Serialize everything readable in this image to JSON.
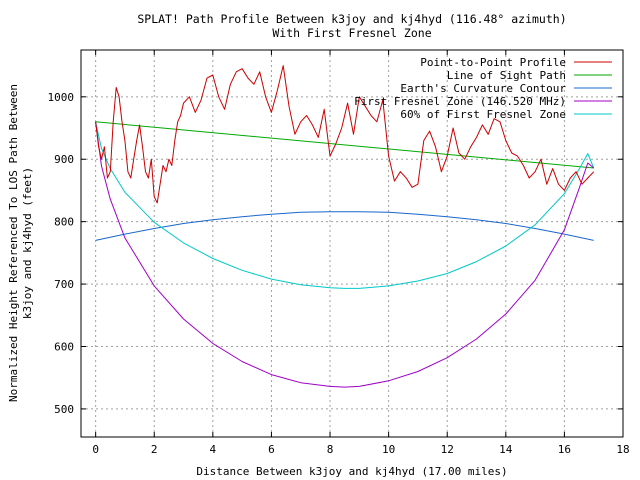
{
  "chart_data": {
    "type": "line",
    "title": "SPLAT! Path Profile Between k3joy and kj4hyd (116.48° azimuth)",
    "subtitle": "With First Fresnel Zone",
    "xlabel": "Distance Between k3joy and kj4hyd (17.00 miles)",
    "ylabel_line1": "Normalized Height Referenced To LOS Path Between",
    "ylabel_line2": "k3joy and kj4hyd (feet)",
    "xlim": [
      -0.5,
      18
    ],
    "ylim": [
      455,
      1075
    ],
    "xticks": [
      0,
      2,
      4,
      6,
      8,
      10,
      12,
      14,
      16,
      18
    ],
    "yticks": [
      500,
      600,
      700,
      800,
      900,
      1000
    ],
    "grid": true,
    "legend_position": "top-right",
    "series": [
      {
        "name": "Point-to-Point Profile",
        "color": "#cc0000",
        "x": [
          0,
          0.1,
          0.2,
          0.3,
          0.4,
          0.5,
          0.6,
          0.7,
          0.8,
          0.9,
          1.0,
          1.1,
          1.2,
          1.3,
          1.4,
          1.5,
          1.6,
          1.7,
          1.8,
          1.9,
          2.0,
          2.1,
          2.2,
          2.3,
          2.4,
          2.5,
          2.6,
          2.7,
          2.8,
          2.9,
          3.0,
          3.2,
          3.4,
          3.6,
          3.8,
          4.0,
          4.2,
          4.4,
          4.6,
          4.8,
          5.0,
          5.2,
          5.4,
          5.6,
          5.8,
          6.0,
          6.2,
          6.4,
          6.6,
          6.8,
          7.0,
          7.2,
          7.4,
          7.6,
          7.8,
          8.0,
          8.2,
          8.4,
          8.6,
          8.8,
          9.0,
          9.2,
          9.4,
          9.6,
          9.8,
          10.0,
          10.2,
          10.4,
          10.6,
          10.8,
          11.0,
          11.2,
          11.4,
          11.6,
          11.8,
          12.0,
          12.2,
          12.4,
          12.6,
          12.8,
          13.0,
          13.2,
          13.4,
          13.6,
          13.8,
          14.0,
          14.2,
          14.4,
          14.6,
          14.8,
          15.0,
          15.2,
          15.4,
          15.6,
          15.8,
          16.0,
          16.2,
          16.4,
          16.6,
          16.8,
          17.0
        ],
        "y": [
          960,
          920,
          900,
          920,
          870,
          880,
          960,
          1015,
          1000,
          960,
          930,
          880,
          870,
          900,
          930,
          955,
          920,
          880,
          870,
          900,
          840,
          830,
          860,
          890,
          880,
          900,
          890,
          930,
          960,
          970,
          990,
          1000,
          975,
          995,
          1030,
          1035,
          1000,
          980,
          1020,
          1040,
          1045,
          1030,
          1020,
          1040,
          1000,
          975,
          1010,
          1050,
          985,
          940,
          960,
          970,
          955,
          935,
          980,
          905,
          925,
          950,
          990,
          940,
          1000,
          985,
          970,
          960,
          995,
          905,
          865,
          880,
          870,
          855,
          860,
          930,
          945,
          920,
          880,
          905,
          950,
          910,
          900,
          920,
          935,
          955,
          940,
          965,
          960,
          930,
          910,
          905,
          890,
          870,
          880,
          900,
          860,
          885,
          860,
          850,
          870,
          880,
          860,
          870,
          880
        ]
      },
      {
        "name": "Line of Sight Path",
        "color": "#00aa00",
        "x": [
          0,
          17
        ],
        "y": [
          960,
          886
        ]
      },
      {
        "name": "Earth's Curvature Contour",
        "color": "#1a66cc",
        "x": [
          0,
          1,
          2,
          3,
          4,
          5,
          6,
          7,
          8,
          8.5,
          9,
          10,
          11,
          12,
          13,
          14,
          15,
          16,
          17
        ],
        "y": [
          770,
          780,
          789,
          797,
          803,
          808,
          812,
          815,
          816,
          816,
          816,
          815,
          812,
          808,
          803,
          797,
          789,
          780,
          770
        ]
      },
      {
        "name": "First Fresnel Zone (146.520 MHz)",
        "color": "#a000c8",
        "x": [
          0,
          0.2,
          0.5,
          1,
          2,
          3,
          4,
          5,
          6,
          7,
          8,
          8.5,
          9,
          10,
          11,
          12,
          13,
          14,
          15,
          16,
          16.5,
          16.8,
          17
        ],
        "y": [
          960,
          889,
          836,
          774,
          697,
          644,
          605,
          576,
          555,
          542,
          536,
          535,
          536,
          545,
          560,
          582,
          612,
          652,
          706,
          787,
          853,
          894,
          886
        ]
      },
      {
        "name": "60% of First Fresnel Zone",
        "color": "#00c8c8",
        "x": [
          0,
          0.2,
          0.5,
          1,
          2,
          3,
          4,
          5,
          6,
          7,
          8,
          8.5,
          9,
          10,
          11,
          12,
          13,
          14,
          15,
          16,
          16.5,
          16.8,
          17
        ],
        "y": [
          960,
          917,
          885,
          847,
          799,
          766,
          741,
          722,
          708,
          699,
          694,
          693,
          693,
          697,
          705,
          717,
          736,
          761,
          795,
          845,
          884,
          909,
          886
        ]
      }
    ]
  }
}
